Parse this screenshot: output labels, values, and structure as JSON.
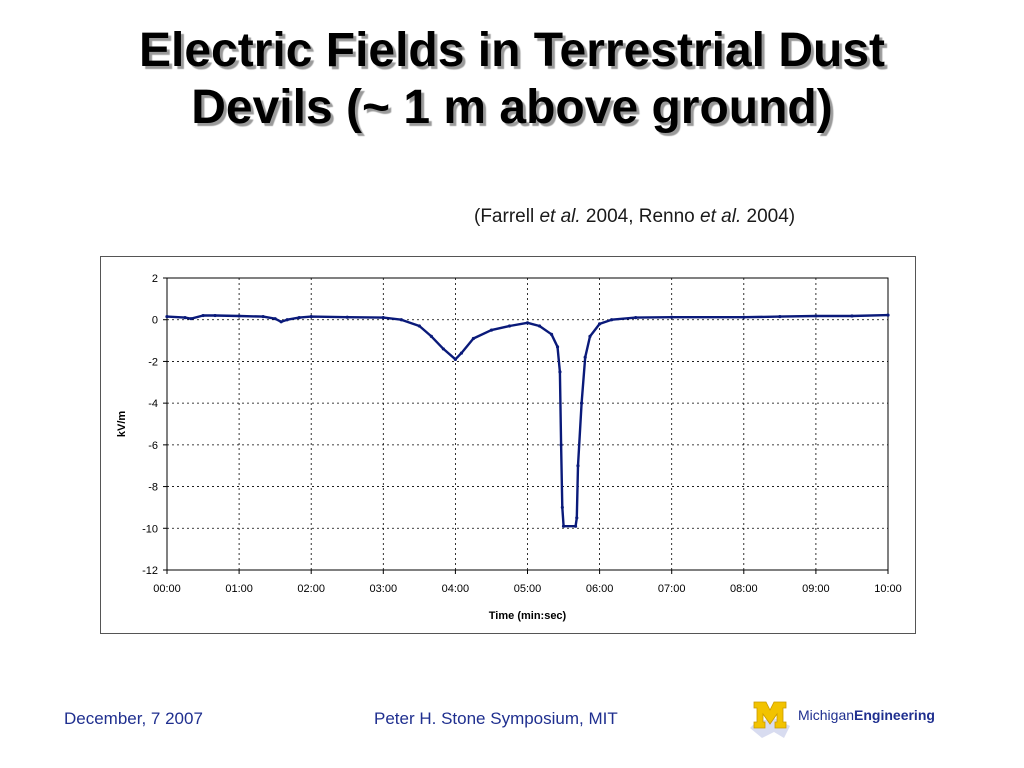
{
  "slide": {
    "title_line1": "Electric Fields in Terrestrial Dust",
    "title_line2": "Devils (~ 1 m above ground)",
    "citation": {
      "open": "(Farrell ",
      "etal1": "et al.",
      "mid": " 2004, Renno ",
      "etal2": "et al.",
      "close": " 2004)"
    }
  },
  "footer": {
    "date": "December, 7 2007",
    "event": "Peter H. Stone Symposium, MIT",
    "logo_part1": "Michigan",
    "logo_part2": "Engineering",
    "logo_icon": "block-m-logo-icon"
  },
  "colors": {
    "series": "#0a1a7a",
    "footer_text": "#1f2f8f",
    "logo_m": "#f2c300"
  },
  "chart_data": {
    "type": "line",
    "title": "",
    "xlabel": "Time (min:sec)",
    "ylabel": "kV/m",
    "xlim": [
      "00:00",
      "10:00"
    ],
    "ylim": [
      -12,
      2
    ],
    "x_ticks": [
      "00:00",
      "01:00",
      "02:00",
      "03:00",
      "04:00",
      "05:00",
      "06:00",
      "07:00",
      "08:00",
      "09:00",
      "10:00"
    ],
    "y_ticks": [
      2,
      0,
      -2,
      -4,
      -6,
      -8,
      -10,
      -12
    ],
    "grid": true,
    "legend": "none",
    "series": [
      {
        "x": [
          "00:00",
          "00:15",
          "00:20",
          "00:30",
          "00:40",
          "01:00",
          "01:20",
          "01:30",
          "01:35",
          "01:40",
          "01:50",
          "02:00",
          "02:30",
          "03:00",
          "03:15",
          "03:30",
          "03:40",
          "03:50",
          "04:00",
          "04:05",
          "04:15",
          "04:30",
          "04:45",
          "05:00",
          "05:10",
          "05:20",
          "05:25",
          "05:27",
          "05:28",
          "05:29",
          "05:30",
          "05:40",
          "05:41",
          "05:42",
          "05:45",
          "05:48",
          "05:52",
          "06:00",
          "06:10",
          "06:30",
          "07:00",
          "08:00",
          "08:30",
          "09:00",
          "09:30",
          "10:00"
        ],
        "y": [
          0.15,
          0.1,
          0.05,
          0.2,
          0.2,
          0.18,
          0.15,
          0.05,
          -0.1,
          0.0,
          0.1,
          0.15,
          0.12,
          0.1,
          0.0,
          -0.3,
          -0.8,
          -1.4,
          -1.9,
          -1.6,
          -0.9,
          -0.5,
          -0.3,
          -0.15,
          -0.3,
          -0.7,
          -1.3,
          -2.5,
          -6,
          -9,
          -9.9,
          -9.9,
          -9.5,
          -7,
          -4,
          -1.8,
          -0.8,
          -0.2,
          0.0,
          0.1,
          0.12,
          0.12,
          0.15,
          0.18,
          0.18,
          0.22
        ]
      }
    ]
  }
}
